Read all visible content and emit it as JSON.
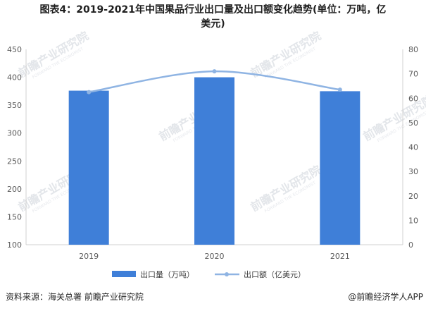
{
  "title_line1": "图表4：2019-2021年中国果品行业出口量及出口额变化趋势(单位：万吨，亿",
  "title_line2": "美元)",
  "source": "资料来源：海关总署 前瞻产业研究院",
  "brand": "@前瞻经济学人APP",
  "watermark": {
    "brand": "前瞻产业研究院",
    "sub": "FORWARD THE ECONOMIST"
  },
  "colors": {
    "bar": "#3f7fd8",
    "line": "#8fb4e3",
    "axis": "#d0d0d0"
  },
  "chart_data": {
    "type": "bar",
    "categories": [
      "2019",
      "2020",
      "2021"
    ],
    "series": [
      {
        "name": "出口量（万吨）",
        "type": "bar",
        "axis": "left",
        "values": [
          376,
          400,
          375
        ]
      },
      {
        "name": "出口额（亿美元）",
        "type": "line",
        "axis": "right",
        "values": [
          62.5,
          71,
          63.5
        ]
      }
    ],
    "y_left": {
      "lim": [
        100,
        450
      ],
      "ticks": [
        "100",
        "150",
        "200",
        "250",
        "300",
        "350",
        "400",
        "450"
      ]
    },
    "y_right": {
      "lim": [
        0,
        80
      ],
      "ticks": [
        "0",
        "10",
        "20",
        "30",
        "40",
        "50",
        "60",
        "70",
        "80"
      ]
    },
    "grid": false,
    "legend_position": "bottom"
  }
}
